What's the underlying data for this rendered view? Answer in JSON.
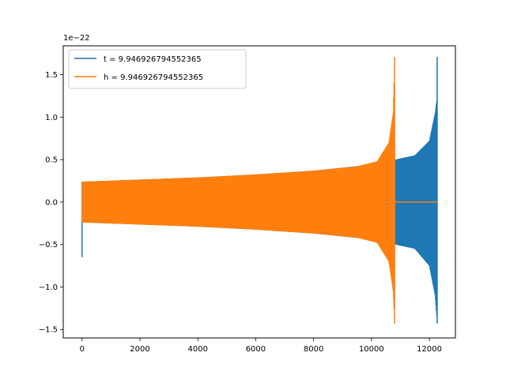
{
  "chart_data": {
    "type": "line",
    "title": "",
    "xlabel": "",
    "ylabel": "",
    "y_offset_text": "1e−22",
    "xlim": [
      -650,
      12900
    ],
    "ylim": [
      -1.6,
      1.84
    ],
    "x_ticks": [
      0,
      2000,
      4000,
      6000,
      8000,
      10000,
      12000
    ],
    "x_tick_labels": [
      "0",
      "2000",
      "4000",
      "6000",
      "8000",
      "10000",
      "12000"
    ],
    "y_ticks": [
      -1.5,
      -1.0,
      -0.5,
      0.0,
      0.5,
      1.0,
      1.5
    ],
    "y_tick_labels": [
      "−1.5",
      "−1.0",
      "−0.5",
      "0.0",
      "0.5",
      "1.0",
      "1.5"
    ],
    "grid": false,
    "legend_position": "top-left",
    "series": [
      {
        "name": "t = 9.946926794552365",
        "color": "#1f77b4",
        "kind": "chirp",
        "start_x": 0,
        "merger_x": 10800,
        "end_x": 12270,
        "upper_envelope": [
          [
            0,
            0.24
          ],
          [
            2000,
            0.265
          ],
          [
            4000,
            0.29
          ],
          [
            6000,
            0.325
          ],
          [
            8000,
            0.37
          ],
          [
            10000,
            0.44
          ],
          [
            11500,
            0.55
          ],
          [
            12000,
            0.72
          ],
          [
            12200,
            1.05
          ],
          [
            12270,
            1.24
          ]
        ],
        "lower_envelope": [
          [
            0,
            -0.24
          ],
          [
            2000,
            -0.265
          ],
          [
            4000,
            -0.29
          ],
          [
            6000,
            -0.325
          ],
          [
            8000,
            -0.37
          ],
          [
            10000,
            -0.44
          ],
          [
            11500,
            -0.55
          ],
          [
            12000,
            -0.75
          ],
          [
            12200,
            -1.1
          ],
          [
            12270,
            -1.43
          ]
        ],
        "peak_max": 1.71,
        "peak_min": -1.43,
        "initial_spike_min": -0.65,
        "initial_spike_max": 0.24
      },
      {
        "name": "h = 9.946926794552365",
        "color": "#ff7f0e",
        "kind": "chirp",
        "start_x": 0,
        "end_x": 10800,
        "tail_end_x": 12270,
        "upper_envelope": [
          [
            0,
            0.24
          ],
          [
            2000,
            0.265
          ],
          [
            4000,
            0.29
          ],
          [
            6000,
            0.325
          ],
          [
            8000,
            0.37
          ],
          [
            9500,
            0.42
          ],
          [
            10200,
            0.48
          ],
          [
            10600,
            0.7
          ],
          [
            10750,
            1.05
          ],
          [
            10800,
            1.71
          ]
        ],
        "lower_envelope": [
          [
            0,
            -0.24
          ],
          [
            2000,
            -0.265
          ],
          [
            4000,
            -0.29
          ],
          [
            6000,
            -0.325
          ],
          [
            8000,
            -0.37
          ],
          [
            9500,
            -0.42
          ],
          [
            10200,
            -0.48
          ],
          [
            10600,
            -0.7
          ],
          [
            10750,
            -1.05
          ],
          [
            10800,
            -1.43
          ]
        ],
        "peak_max": 1.71,
        "peak_min": -1.43,
        "tail_value": 0.0
      }
    ]
  }
}
